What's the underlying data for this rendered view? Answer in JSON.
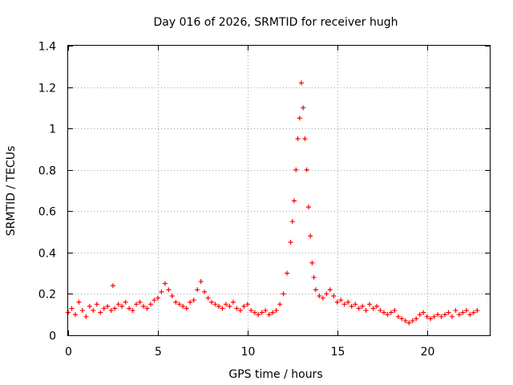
{
  "chart_data": {
    "type": "scatter",
    "title": "Day 016 of 2026, SRMTID for receiver hugh",
    "xlabel": "GPS time / hours",
    "ylabel": "SRMTID / TECUs",
    "xlim": [
      0,
      23.5
    ],
    "ylim": [
      0,
      1.4
    ],
    "x_ticks": [
      0,
      5,
      10,
      15,
      20
    ],
    "x_tick_labels": [
      "0",
      "5",
      "10",
      "15",
      "20"
    ],
    "y_ticks": [
      0,
      0.2,
      0.4,
      0.6,
      0.8,
      1.0,
      1.2,
      1.4
    ],
    "y_tick_labels": [
      "0",
      "0.2",
      "0.4",
      "0.6",
      "0.8",
      "1",
      "1.2",
      "1.4"
    ],
    "grid": true,
    "marker": "+",
    "series": [
      {
        "name": "SRMTID",
        "color": "#ff0000",
        "x": [
          0.0,
          0.2,
          0.4,
          0.6,
          0.8,
          1.0,
          1.2,
          1.4,
          1.6,
          1.8,
          2.0,
          2.2,
          2.4,
          2.5,
          2.6,
          2.8,
          3.0,
          3.2,
          3.4,
          3.6,
          3.8,
          4.0,
          4.2,
          4.4,
          4.6,
          4.8,
          5.0,
          5.2,
          5.4,
          5.6,
          5.8,
          6.0,
          6.2,
          6.4,
          6.6,
          6.8,
          7.0,
          7.2,
          7.4,
          7.6,
          7.8,
          8.0,
          8.2,
          8.4,
          8.6,
          8.8,
          9.0,
          9.2,
          9.4,
          9.6,
          9.8,
          10.0,
          10.2,
          10.4,
          10.6,
          10.8,
          11.0,
          11.2,
          11.4,
          11.6,
          11.8,
          12.0,
          12.2,
          12.4,
          12.5,
          12.6,
          12.7,
          12.8,
          12.9,
          13.0,
          13.1,
          13.2,
          13.3,
          13.4,
          13.5,
          13.6,
          13.7,
          13.8,
          14.0,
          14.2,
          14.4,
          14.6,
          14.8,
          15.0,
          15.2,
          15.4,
          15.6,
          15.8,
          16.0,
          16.2,
          16.4,
          16.6,
          16.8,
          17.0,
          17.2,
          17.4,
          17.6,
          17.8,
          18.0,
          18.2,
          18.4,
          18.6,
          18.8,
          19.0,
          19.2,
          19.4,
          19.6,
          19.8,
          20.0,
          20.2,
          20.4,
          20.6,
          20.8,
          21.0,
          21.2,
          21.4,
          21.6,
          21.8,
          22.0,
          22.2,
          22.4,
          22.6,
          22.8
        ],
        "y": [
          0.11,
          0.13,
          0.1,
          0.16,
          0.12,
          0.09,
          0.14,
          0.12,
          0.15,
          0.11,
          0.13,
          0.14,
          0.12,
          0.24,
          0.13,
          0.15,
          0.14,
          0.16,
          0.13,
          0.12,
          0.15,
          0.16,
          0.14,
          0.13,
          0.15,
          0.17,
          0.18,
          0.21,
          0.25,
          0.22,
          0.19,
          0.16,
          0.15,
          0.14,
          0.13,
          0.16,
          0.17,
          0.22,
          0.26,
          0.21,
          0.18,
          0.16,
          0.15,
          0.14,
          0.13,
          0.15,
          0.14,
          0.16,
          0.13,
          0.12,
          0.14,
          0.15,
          0.12,
          0.11,
          0.1,
          0.11,
          0.12,
          0.1,
          0.11,
          0.12,
          0.15,
          0.2,
          0.3,
          0.45,
          0.55,
          0.65,
          0.8,
          0.95,
          1.05,
          1.22,
          1.1,
          0.95,
          0.8,
          0.62,
          0.48,
          0.35,
          0.28,
          0.22,
          0.19,
          0.18,
          0.2,
          0.22,
          0.19,
          0.16,
          0.17,
          0.15,
          0.16,
          0.14,
          0.15,
          0.13,
          0.14,
          0.12,
          0.15,
          0.13,
          0.14,
          0.12,
          0.11,
          0.1,
          0.11,
          0.12,
          0.09,
          0.08,
          0.07,
          0.06,
          0.07,
          0.08,
          0.1,
          0.11,
          0.09,
          0.08,
          0.09,
          0.1,
          0.09,
          0.1,
          0.11,
          0.09,
          0.12,
          0.1,
          0.11,
          0.12,
          0.1,
          0.11,
          0.12
        ]
      }
    ]
  }
}
